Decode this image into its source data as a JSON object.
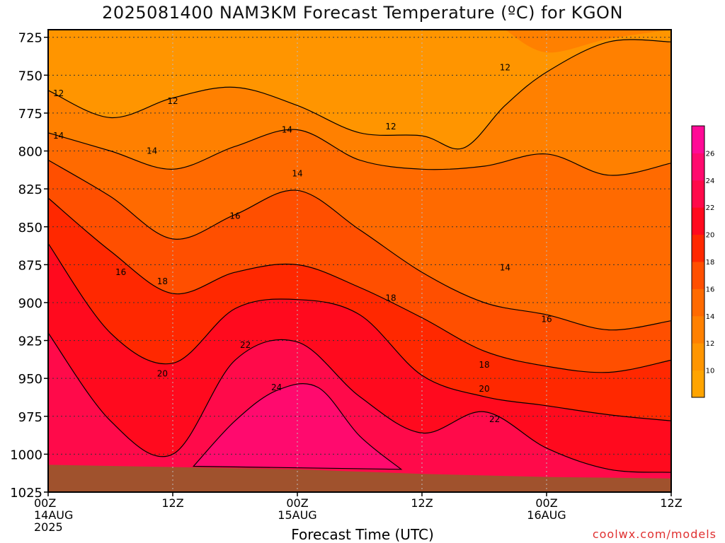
{
  "header": {
    "title": "2025081400 NAM3KM Forecast Temperature (ºC) for KGON"
  },
  "footer": {
    "credit": "coolwx.com/models"
  },
  "chart_data": {
    "type": "heatmap",
    "title": "2025081400 NAM3KM Forecast Temperature (ºC) for KGON",
    "xlabel": "Forecast Time (UTC)",
    "ylabel": "",
    "y_scale": "pressure (hPa), inverted",
    "ylim": [
      1025,
      720
    ],
    "xlim": [
      "2025-08-14T00:00Z",
      "2025-08-16T12:00Z"
    ],
    "y_ticks": [
      725,
      750,
      775,
      800,
      825,
      850,
      875,
      900,
      925,
      950,
      975,
      1000,
      1025
    ],
    "x_ticks": [
      {
        "t": "2025-08-14T00:00Z",
        "label": [
          "00Z",
          "14AUG",
          "2025"
        ]
      },
      {
        "t": "2025-08-14T12:00Z",
        "label": [
          "12Z"
        ]
      },
      {
        "t": "2025-08-15T00:00Z",
        "label": [
          "00Z",
          "15AUG"
        ]
      },
      {
        "t": "2025-08-15T12:00Z",
        "label": [
          "12Z"
        ]
      },
      {
        "t": "2025-08-16T00:00Z",
        "label": [
          "00Z",
          "16AUG"
        ]
      },
      {
        "t": "2025-08-16T12:00Z",
        "label": [
          "12Z"
        ]
      }
    ],
    "grid": true,
    "colorbar": {
      "position": "right",
      "levels": [
        8,
        10,
        12,
        14,
        16,
        18,
        20,
        22,
        24,
        26,
        28
      ],
      "labels": [
        "10",
        "12",
        "14",
        "16",
        "18",
        "20",
        "22",
        "24",
        "26"
      ],
      "colors": [
        "#ffa400",
        "#ff9500",
        "#ff8000",
        "#ff6a00",
        "#ff4f00",
        "#ff2800",
        "#ff0a1e",
        "#ff0a4a",
        "#ff0a6e",
        "#ff0a96"
      ]
    },
    "terrain_color": "#a0522d",
    "surface_pressure": [
      {
        "t": "2025-08-14T00:00Z",
        "p": 1007
      },
      {
        "t": "2025-08-15T00:00Z",
        "p": 1010
      },
      {
        "t": "2025-08-15T12:00Z",
        "p": 1013
      },
      {
        "t": "2025-08-16T00:00Z",
        "p": 1015
      },
      {
        "t": "2025-08-16T12:00Z",
        "p": 1016
      }
    ],
    "isotherms": [
      {
        "value": 12,
        "labels": [
          {
            "t": "2025-08-14T01:00Z",
            "p": 762
          },
          {
            "t": "2025-08-14T12:00Z",
            "p": 767
          },
          {
            "t": "2025-08-15T09:00Z",
            "p": 784
          },
          {
            "t": "2025-08-15T20:00Z",
            "p": 745
          }
        ],
        "points": [
          [
            0,
            760
          ],
          [
            6,
            778
          ],
          [
            12,
            765
          ],
          [
            18,
            758
          ],
          [
            24,
            770
          ],
          [
            30,
            788
          ],
          [
            36,
            790
          ],
          [
            40,
            798
          ],
          [
            44,
            770
          ],
          [
            48,
            748
          ],
          [
            54,
            728
          ],
          [
            60,
            728
          ]
        ]
      },
      {
        "value": 14,
        "labels": [
          {
            "t": "2025-08-14T01:00Z",
            "p": 790
          },
          {
            "t": "2025-08-14T10:00Z",
            "p": 800
          },
          {
            "t": "2025-08-14T23:00Z",
            "p": 786
          },
          {
            "t": "2025-08-15T00:00Z",
            "p": 815
          },
          {
            "t": "2025-08-15T20:00Z",
            "p": 877
          }
        ],
        "points": [
          [
            0,
            788
          ],
          [
            6,
            800
          ],
          [
            12,
            812
          ],
          [
            18,
            797
          ],
          [
            24,
            786
          ],
          [
            30,
            806
          ],
          [
            36,
            812
          ],
          [
            42,
            810
          ],
          [
            48,
            802
          ],
          [
            54,
            816
          ],
          [
            60,
            808
          ]
        ]
      },
      {
        "value": 16,
        "labels": [
          {
            "t": "2025-08-14T07:00Z",
            "p": 880
          },
          {
            "t": "2025-08-14T18:00Z",
            "p": 843
          },
          {
            "t": "2025-08-16T00:00Z",
            "p": 911
          }
        ],
        "points": [
          [
            0,
            806
          ],
          [
            6,
            830
          ],
          [
            12,
            858
          ],
          [
            18,
            842
          ],
          [
            24,
            826
          ],
          [
            30,
            852
          ],
          [
            36,
            880
          ],
          [
            42,
            900
          ],
          [
            48,
            908
          ],
          [
            54,
            918
          ],
          [
            60,
            912
          ]
        ]
      },
      {
        "value": 18,
        "labels": [
          {
            "t": "2025-08-14T11:00Z",
            "p": 886
          },
          {
            "t": "2025-08-15T09:00Z",
            "p": 897
          },
          {
            "t": "2025-08-15T18:00Z",
            "p": 941
          }
        ],
        "points": [
          [
            0,
            831
          ],
          [
            6,
            866
          ],
          [
            12,
            894
          ],
          [
            18,
            880
          ],
          [
            24,
            875
          ],
          [
            30,
            890
          ],
          [
            36,
            910
          ],
          [
            42,
            932
          ],
          [
            48,
            942
          ],
          [
            54,
            946
          ],
          [
            60,
            938
          ]
        ]
      },
      {
        "value": 20,
        "labels": [
          {
            "t": "2025-08-14T11:00Z",
            "p": 947
          },
          {
            "t": "2025-08-15T18:00Z",
            "p": 957
          }
        ],
        "points": [
          [
            0,
            861
          ],
          [
            6,
            920
          ],
          [
            12,
            940
          ],
          [
            18,
            904
          ],
          [
            24,
            898
          ],
          [
            30,
            908
          ],
          [
            36,
            948
          ],
          [
            42,
            962
          ],
          [
            48,
            968
          ],
          [
            54,
            974
          ],
          [
            60,
            978
          ]
        ]
      },
      {
        "value": 22,
        "labels": [
          {
            "t": "2025-08-14T19:00Z",
            "p": 928
          },
          {
            "t": "2025-08-15T19:00Z",
            "p": 977
          }
        ],
        "points": [
          [
            0,
            920
          ],
          [
            6,
            978
          ],
          [
            12,
            1000
          ],
          [
            18,
            938
          ],
          [
            24,
            926
          ],
          [
            30,
            962
          ],
          [
            36,
            986
          ],
          [
            42,
            972
          ],
          [
            48,
            996
          ],
          [
            54,
            1010
          ],
          [
            60,
            1012
          ]
        ]
      },
      {
        "value": 24,
        "labels": [
          {
            "t": "2025-08-14T22:00Z",
            "p": 956
          }
        ],
        "points": [
          [
            14,
            1008
          ],
          [
            18,
            978
          ],
          [
            22,
            958
          ],
          [
            26,
            956
          ],
          [
            30,
            988
          ],
          [
            34,
            1010
          ]
        ]
      }
    ]
  }
}
